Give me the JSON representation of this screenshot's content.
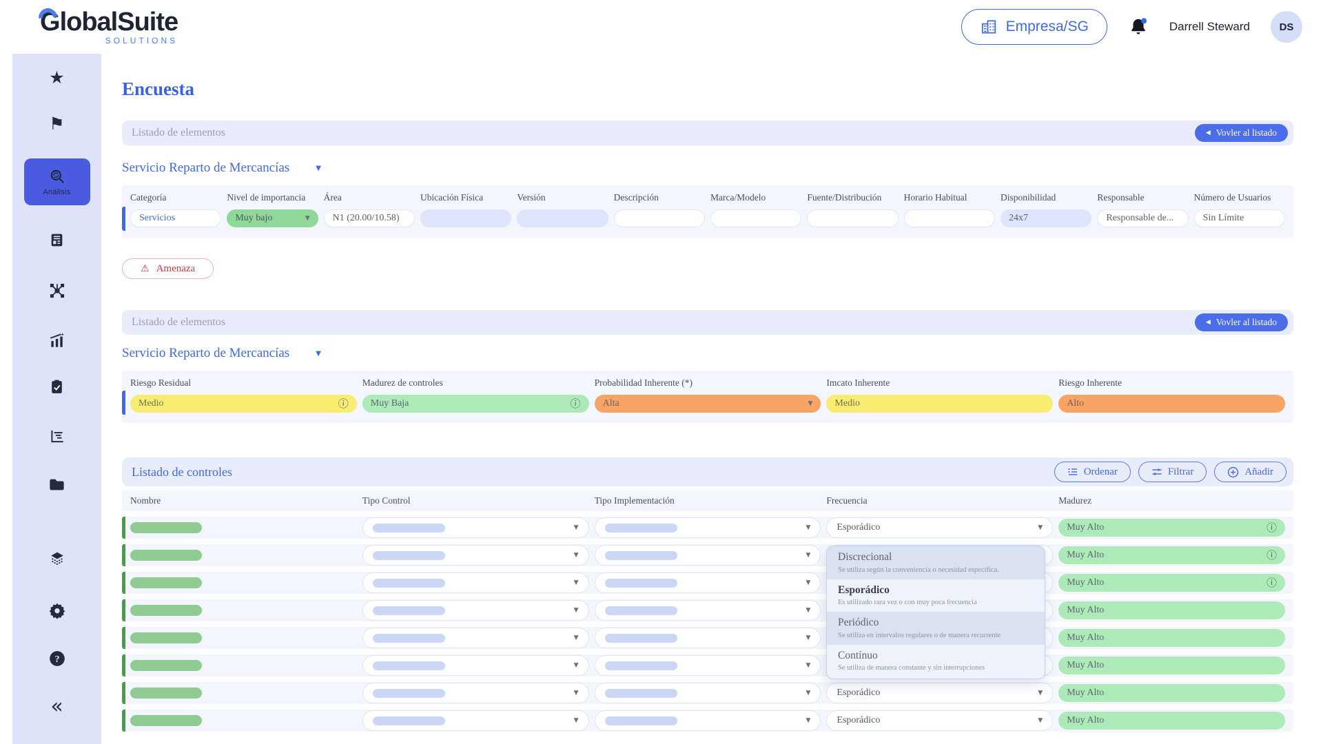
{
  "header": {
    "logo_text": "GlobalSuite",
    "logo_first_letter": "G",
    "logo_rest": "lobalSuite",
    "logo_subtext": "SOLUTIONS",
    "company_button": "Empresa/SG",
    "user_name": "Darrell Steward",
    "avatar_initials": "DS"
  },
  "sidebar": {
    "active_item_label": "Análisis",
    "items": [
      "favorites",
      "flags",
      "analysis",
      "documents",
      "network",
      "statistics",
      "tasks",
      "reports",
      "files",
      "layers",
      "settings",
      "help",
      "collapse"
    ]
  },
  "page": {
    "title": "Encuesta"
  },
  "elements_bar": {
    "label": "Listado de elementos",
    "back_button": "Vovler al listado"
  },
  "service_selector": {
    "label": "Servicio Reparto de Mercancías"
  },
  "element_table": {
    "columns": [
      "Categoría",
      "Nivel de importancia",
      "Área",
      "Ubicación Física",
      "Versión",
      "Descripción",
      "Marca/Modelo",
      "Fuente/Distribución",
      "Horario Habitual",
      "Disponibilidad",
      "Responsable",
      "Número de Usuarios"
    ],
    "cells": [
      {
        "style": "white",
        "text": "Servicios",
        "accent": "blue-text",
        "name": "categoria-value",
        "interactable": true
      },
      {
        "style": "green",
        "text": "Muy bajo",
        "icon": "caret",
        "name": "nivel-importancia-select",
        "interactable": true
      },
      {
        "style": "white",
        "text": "N1 (20.00/10.58)",
        "name": "area-value",
        "interactable": true
      },
      {
        "style": "lavender",
        "text": "",
        "name": "ubicacion-fisica-field",
        "interactable": true
      },
      {
        "style": "lavender",
        "text": "",
        "name": "version-field",
        "interactable": true
      },
      {
        "style": "white",
        "text": "",
        "name": "descripcion-field",
        "interactable": true
      },
      {
        "style": "white",
        "text": "",
        "name": "marca-modelo-field",
        "interactable": true
      },
      {
        "style": "white",
        "text": "",
        "name": "fuente-distribucion-field",
        "interactable": true
      },
      {
        "style": "white",
        "text": "",
        "name": "horario-habitual-field",
        "interactable": true
      },
      {
        "style": "lavender",
        "text": "24x7",
        "name": "disponibilidad-field",
        "interactable": true
      },
      {
        "style": "white",
        "text": "Responsable de...",
        "name": "responsable-field",
        "interactable": true
      },
      {
        "style": "white",
        "text": "Sin Límite",
        "name": "numero-usuarios-field",
        "interactable": true
      }
    ]
  },
  "amenaza_button": "Amenaza",
  "risk_table": {
    "columns": [
      "Riesgo Residual",
      "Madurez de controles",
      "Probabilidad Inherente (*)",
      "Imcato Inherente",
      "Riesgo Inherente"
    ],
    "cells": [
      {
        "style": "yellow",
        "text": "Medio",
        "icon": "info",
        "name": "riesgo-residual-badge",
        "interactable": false
      },
      {
        "style": "lightgreen",
        "text": "Muy Baja",
        "icon": "info",
        "name": "madurez-controles-badge",
        "interactable": false
      },
      {
        "style": "orange",
        "text": "Alta",
        "icon": "caret",
        "name": "probabilidad-inherente-select",
        "interactable": true
      },
      {
        "style": "yellow",
        "text": "Medio",
        "icon": null,
        "name": "impacto-inherente-badge",
        "interactable": false
      },
      {
        "style": "orange",
        "text": "Alto",
        "icon": null,
        "name": "riesgo-inherente-badge",
        "interactable": false
      }
    ]
  },
  "controls_section": {
    "title": "Listado de controles",
    "sort_button": "Ordenar",
    "filter_button": "Filtrar",
    "add_button": "Añadir",
    "columns": [
      "Nombre",
      "Tipo Control",
      "Tipo Implementación",
      "Frecuencia",
      "Madurez"
    ],
    "frequency_value": "Esporádico",
    "maturity_value": "Muy Alto",
    "rows": [
      {
        "info": true
      },
      {
        "info": true
      },
      {
        "info": true
      },
      {
        "info": false
      },
      {
        "info": false
      },
      {
        "info": false
      },
      {
        "info": false
      },
      {
        "info": false
      }
    ]
  },
  "frequency_dropdown": {
    "options": [
      {
        "label": "Discrecional",
        "description": "Se utiliza según la conveniencia o necesidad específica.",
        "selected": false,
        "tinted": true
      },
      {
        "label": "Esporádico",
        "description": "Es utilizado rara vez o con muy poca frecuencia",
        "selected": true,
        "tinted": false
      },
      {
        "label": "Periódico",
        "description": "Se utiliza en intervalos regulares o de manera recurrente",
        "selected": false,
        "tinted": true
      },
      {
        "label": "Contínuo",
        "description": "Se utiliza de manera constante y sin interrupciones",
        "selected": false,
        "tinted": false
      }
    ]
  },
  "colors": {
    "brand_blue": "#4169e1",
    "sidebar_active": "#4a5be0",
    "risk_green": "#8fd899",
    "risk_yellow": "#f8ec71",
    "risk_orange": "#f9a364",
    "maturity_green": "#aeeab8",
    "alert_red": "#d4373e"
  }
}
